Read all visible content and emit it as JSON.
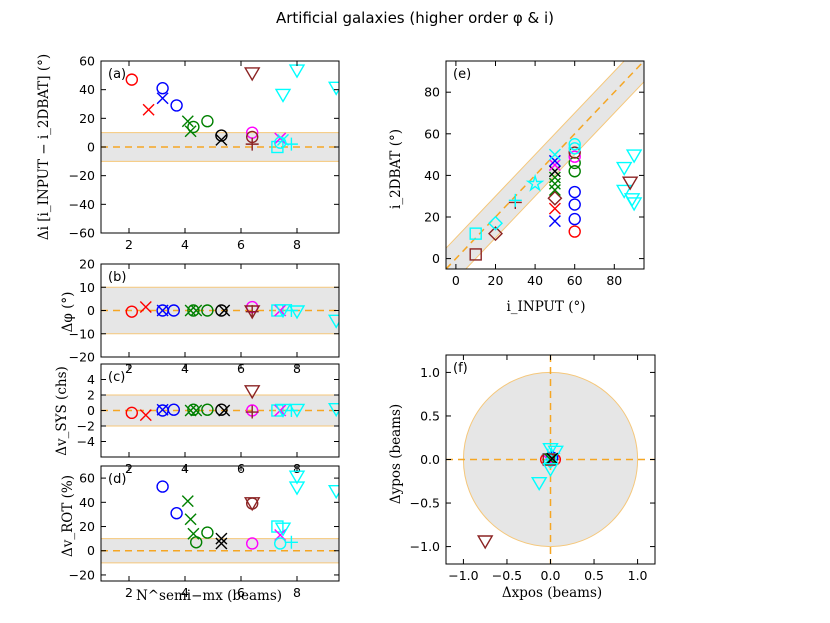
{
  "title": "Artificial galaxies (higher order φ & i)",
  "colors": {
    "band_fill": "#e6e6e6",
    "band_edge": "#f5c77a",
    "dash": "#f5a623",
    "frame": "#000000"
  },
  "chart_data": [
    {
      "id": "a",
      "panel_label": "(a)",
      "type": "scatter",
      "xlabel": "",
      "ylabel": "Δi [i_INPUT − i_2DBAT] (°)",
      "xlim": [
        1,
        9.5
      ],
      "ylim": [
        -60,
        60
      ],
      "xticks": [
        2,
        4,
        6,
        8
      ],
      "xtick_labels": [
        "2",
        "4",
        "6",
        "8"
      ],
      "yticks": [
        -60,
        -40,
        -20,
        0,
        20,
        40,
        60
      ],
      "ytick_labels": [
        "−60",
        "−40",
        "−20",
        "0",
        "20",
        "40",
        "60"
      ],
      "band": [
        -10,
        10
      ],
      "hline": 0,
      "points": [
        {
          "x": 2.1,
          "y": 47,
          "m": "o",
          "c": "#ff0000"
        },
        {
          "x": 2.7,
          "y": 26,
          "m": "x",
          "c": "#ff0000"
        },
        {
          "x": 3.2,
          "y": 41,
          "m": "o",
          "c": "#0000ff"
        },
        {
          "x": 3.2,
          "y": 34,
          "m": "x",
          "c": "#0000ff"
        },
        {
          "x": 3.7,
          "y": 29,
          "m": "o",
          "c": "#0000ff"
        },
        {
          "x": 4.1,
          "y": 18,
          "m": "x",
          "c": "#008000"
        },
        {
          "x": 4.3,
          "y": 14,
          "m": "o",
          "c": "#008000"
        },
        {
          "x": 4.2,
          "y": 11,
          "m": "x",
          "c": "#008000"
        },
        {
          "x": 4.8,
          "y": 18,
          "m": "o",
          "c": "#008000"
        },
        {
          "x": 5.3,
          "y": 8,
          "m": "o",
          "c": "#000000"
        },
        {
          "x": 5.3,
          "y": 5,
          "m": "x",
          "c": "#000000"
        },
        {
          "x": 6.4,
          "y": 52,
          "m": "v",
          "c": "#8b2323"
        },
        {
          "x": 6.4,
          "y": 10,
          "m": "o",
          "c": "#ff00ff"
        },
        {
          "x": 6.4,
          "y": 7,
          "m": "o",
          "c": "#8b2323"
        },
        {
          "x": 6.4,
          "y": 2,
          "m": "+",
          "c": "#8b2323"
        },
        {
          "x": 7.3,
          "y": 0,
          "m": "s",
          "c": "#00ffff"
        },
        {
          "x": 7.4,
          "y": 6,
          "m": "x",
          "c": "#ff00ff"
        },
        {
          "x": 7.4,
          "y": 3,
          "m": "o",
          "c": "#00ffff"
        },
        {
          "x": 7.5,
          "y": 37,
          "m": "v",
          "c": "#00ffff"
        },
        {
          "x": 7.5,
          "y": 5,
          "m": "x",
          "c": "#00ffff"
        },
        {
          "x": 7.8,
          "y": 2,
          "m": "+",
          "c": "#00ffff"
        },
        {
          "x": 8.0,
          "y": 54,
          "m": "v",
          "c": "#00ffff"
        },
        {
          "x": 9.4,
          "y": 42,
          "m": "v",
          "c": "#00ffff"
        }
      ]
    },
    {
      "id": "b",
      "panel_label": "(b)",
      "type": "scatter",
      "xlabel": "",
      "ylabel": "Δφ (°)",
      "xlim": [
        1,
        9.5
      ],
      "ylim": [
        -20,
        20
      ],
      "xticks": [
        2,
        4,
        6,
        8
      ],
      "xtick_labels": [
        "2",
        "4",
        "6",
        "8"
      ],
      "yticks": [
        -20,
        -10,
        0,
        10,
        20
      ],
      "ytick_labels": [
        "−20",
        "−10",
        "0",
        "10",
        "20"
      ],
      "band": [
        -10,
        10
      ],
      "hline": 0,
      "points": [
        {
          "x": 2.1,
          "y": -0.5,
          "m": "o",
          "c": "#ff0000"
        },
        {
          "x": 2.6,
          "y": 1.5,
          "m": "x",
          "c": "#ff0000"
        },
        {
          "x": 3.2,
          "y": 0,
          "m": "o",
          "c": "#0000ff"
        },
        {
          "x": 3.2,
          "y": 0,
          "m": "x",
          "c": "#0000ff"
        },
        {
          "x": 3.6,
          "y": 0,
          "m": "o",
          "c": "#0000ff"
        },
        {
          "x": 4.2,
          "y": 0,
          "m": "x",
          "c": "#008000"
        },
        {
          "x": 4.3,
          "y": 0,
          "m": "o",
          "c": "#008000"
        },
        {
          "x": 4.4,
          "y": 0,
          "m": "x",
          "c": "#008000"
        },
        {
          "x": 4.8,
          "y": 0,
          "m": "o",
          "c": "#008000"
        },
        {
          "x": 5.3,
          "y": 0,
          "m": "o",
          "c": "#000000"
        },
        {
          "x": 5.4,
          "y": 0,
          "m": "x",
          "c": "#000000"
        },
        {
          "x": 6.4,
          "y": 1.5,
          "m": "o",
          "c": "#ff00ff"
        },
        {
          "x": 6.4,
          "y": 0,
          "m": "v",
          "c": "#8b2323"
        },
        {
          "x": 6.4,
          "y": -0.5,
          "m": "+",
          "c": "#8b2323"
        },
        {
          "x": 7.3,
          "y": 0,
          "m": "s",
          "c": "#00ffff"
        },
        {
          "x": 7.4,
          "y": 0,
          "m": "x",
          "c": "#ff00ff"
        },
        {
          "x": 7.5,
          "y": 0.5,
          "m": "v",
          "c": "#00ffff"
        },
        {
          "x": 7.8,
          "y": 0,
          "m": "+",
          "c": "#00ffff"
        },
        {
          "x": 8.0,
          "y": 0,
          "m": "v",
          "c": "#00ffff"
        },
        {
          "x": 9.4,
          "y": -4,
          "m": "v",
          "c": "#00ffff"
        }
      ]
    },
    {
      "id": "c",
      "panel_label": "(c)",
      "type": "scatter",
      "xlabel": "",
      "ylabel": "Δv_SYS (chs)",
      "xlim": [
        1,
        9.5
      ],
      "ylim": [
        -6,
        6
      ],
      "xticks": [
        2,
        4,
        6,
        8
      ],
      "xtick_labels": [
        "2",
        "4",
        "6",
        "8"
      ],
      "yticks": [
        -4,
        -2,
        0,
        2,
        4
      ],
      "ytick_labels": [
        "−4",
        "−2",
        "0",
        "2",
        "4"
      ],
      "band": [
        -2,
        2
      ],
      "hline": 0,
      "points": [
        {
          "x": 2.1,
          "y": -0.3,
          "m": "o",
          "c": "#ff0000"
        },
        {
          "x": 2.6,
          "y": -0.6,
          "m": "x",
          "c": "#ff0000"
        },
        {
          "x": 3.2,
          "y": 0,
          "m": "o",
          "c": "#0000ff"
        },
        {
          "x": 3.2,
          "y": 0.1,
          "m": "x",
          "c": "#0000ff"
        },
        {
          "x": 3.6,
          "y": 0.1,
          "m": "o",
          "c": "#0000ff"
        },
        {
          "x": 4.2,
          "y": 0,
          "m": "x",
          "c": "#008000"
        },
        {
          "x": 4.3,
          "y": 0.1,
          "m": "o",
          "c": "#008000"
        },
        {
          "x": 4.4,
          "y": 0,
          "m": "x",
          "c": "#008000"
        },
        {
          "x": 4.8,
          "y": 0.1,
          "m": "o",
          "c": "#008000"
        },
        {
          "x": 5.3,
          "y": 0.1,
          "m": "o",
          "c": "#000000"
        },
        {
          "x": 5.4,
          "y": 0,
          "m": "x",
          "c": "#000000"
        },
        {
          "x": 6.4,
          "y": 2.6,
          "m": "v",
          "c": "#8b2323"
        },
        {
          "x": 6.4,
          "y": 0,
          "m": "o",
          "c": "#ff00ff"
        },
        {
          "x": 6.4,
          "y": -0.2,
          "m": "+",
          "c": "#8b2323"
        },
        {
          "x": 7.3,
          "y": 0,
          "m": "s",
          "c": "#00ffff"
        },
        {
          "x": 7.4,
          "y": 0,
          "m": "x",
          "c": "#ff00ff"
        },
        {
          "x": 7.5,
          "y": 0.2,
          "m": "v",
          "c": "#00ffff"
        },
        {
          "x": 7.8,
          "y": 0,
          "m": "+",
          "c": "#00ffff"
        },
        {
          "x": 8.0,
          "y": 0.2,
          "m": "v",
          "c": "#00ffff"
        },
        {
          "x": 9.4,
          "y": 0.3,
          "m": "v",
          "c": "#00ffff"
        }
      ]
    },
    {
      "id": "d",
      "panel_label": "(d)",
      "type": "scatter",
      "xlabel": "N^semi−mx (beams)",
      "ylabel": "Δv_ROT (%)",
      "xlim": [
        1,
        9.5
      ],
      "ylim": [
        -25,
        70
      ],
      "xticks": [
        2,
        4,
        6,
        8
      ],
      "xtick_labels": [
        "2",
        "4",
        "6",
        "8"
      ],
      "yticks": [
        -20,
        0,
        20,
        40,
        60
      ],
      "ytick_labels": [
        "−20",
        "0",
        "20",
        "40",
        "60"
      ],
      "band": [
        -10,
        10
      ],
      "hline": 0,
      "points": [
        {
          "x": 3.2,
          "y": 53,
          "m": "o",
          "c": "#0000ff"
        },
        {
          "x": 3.7,
          "y": 31,
          "m": "o",
          "c": "#0000ff"
        },
        {
          "x": 4.1,
          "y": 41,
          "m": "x",
          "c": "#008000"
        },
        {
          "x": 4.2,
          "y": 26,
          "m": "x",
          "c": "#008000"
        },
        {
          "x": 4.3,
          "y": 14,
          "m": "x",
          "c": "#008000"
        },
        {
          "x": 4.4,
          "y": 7,
          "m": "o",
          "c": "#008000"
        },
        {
          "x": 4.8,
          "y": 15,
          "m": "o",
          "c": "#008000"
        },
        {
          "x": 5.3,
          "y": 10,
          "m": "x",
          "c": "#000000"
        },
        {
          "x": 5.3,
          "y": 6,
          "m": "x",
          "c": "#000000"
        },
        {
          "x": 6.4,
          "y": 40,
          "m": "v",
          "c": "#8b2323"
        },
        {
          "x": 6.4,
          "y": 39,
          "m": "o",
          "c": "#8b2323"
        },
        {
          "x": 6.4,
          "y": 6,
          "m": "o",
          "c": "#ff00ff"
        },
        {
          "x": 7.3,
          "y": 20,
          "m": "s",
          "c": "#00ffff"
        },
        {
          "x": 7.4,
          "y": 13,
          "m": "x",
          "c": "#ff00ff"
        },
        {
          "x": 7.4,
          "y": 6,
          "m": "o",
          "c": "#00ffff"
        },
        {
          "x": 7.5,
          "y": 19,
          "m": "v",
          "c": "#00ffff"
        },
        {
          "x": 7.8,
          "y": 7,
          "m": "+",
          "c": "#00ffff"
        },
        {
          "x": 8.0,
          "y": 62,
          "m": "v",
          "c": "#00ffff"
        },
        {
          "x": 8.0,
          "y": 53,
          "m": "v",
          "c": "#00ffff"
        },
        {
          "x": 9.4,
          "y": 50,
          "m": "v",
          "c": "#00ffff"
        }
      ]
    },
    {
      "id": "e",
      "panel_label": "(e)",
      "type": "scatter",
      "xlabel": "i_INPUT (°)",
      "ylabel": "i_2DBAT (°)",
      "xlim": [
        -5,
        95
      ],
      "ylim": [
        -5,
        95
      ],
      "xticks": [
        0,
        20,
        40,
        60,
        80
      ],
      "xtick_labels": [
        "0",
        "20",
        "40",
        "60",
        "80"
      ],
      "yticks": [
        0,
        20,
        40,
        60,
        80
      ],
      "ytick_labels": [
        "0",
        "20",
        "40",
        "60",
        "80"
      ],
      "band_diag": 10,
      "diag": true,
      "points": [
        {
          "x": 10,
          "y": 2,
          "m": "s",
          "c": "#8b2323"
        },
        {
          "x": 10,
          "y": 12,
          "m": "s",
          "c": "#00ffff"
        },
        {
          "x": 20,
          "y": 12,
          "m": "D",
          "c": "#8b2323"
        },
        {
          "x": 20,
          "y": 17,
          "m": "D",
          "c": "#00ffff"
        },
        {
          "x": 30,
          "y": 27,
          "m": "+",
          "c": "#8b2323"
        },
        {
          "x": 30,
          "y": 28,
          "m": "+",
          "c": "#00ffff"
        },
        {
          "x": 40,
          "y": 36,
          "m": "*",
          "c": "#00ffff"
        },
        {
          "x": 50,
          "y": 18,
          "m": "x",
          "c": "#0000ff"
        },
        {
          "x": 50,
          "y": 24,
          "m": "x",
          "c": "#ff0000"
        },
        {
          "x": 50,
          "y": 29,
          "m": "D",
          "c": "#8b2323"
        },
        {
          "x": 50,
          "y": 33,
          "m": "x",
          "c": "#008000"
        },
        {
          "x": 50,
          "y": 36,
          "m": "x",
          "c": "#008000"
        },
        {
          "x": 50,
          "y": 39,
          "m": "x",
          "c": "#008000"
        },
        {
          "x": 50,
          "y": 42,
          "m": "x",
          "c": "#000000"
        },
        {
          "x": 50,
          "y": 45,
          "m": "x",
          "c": "#ff00ff"
        },
        {
          "x": 50,
          "y": 47,
          "m": "x",
          "c": "#0000ff"
        },
        {
          "x": 50,
          "y": 50,
          "m": "x",
          "c": "#00ffff"
        },
        {
          "x": 60,
          "y": 13,
          "m": "o",
          "c": "#ff0000"
        },
        {
          "x": 60,
          "y": 19,
          "m": "o",
          "c": "#0000ff"
        },
        {
          "x": 60,
          "y": 26,
          "m": "o",
          "c": "#0000ff"
        },
        {
          "x": 60,
          "y": 32,
          "m": "o",
          "c": "#0000ff"
        },
        {
          "x": 60,
          "y": 42,
          "m": "o",
          "c": "#008000"
        },
        {
          "x": 60,
          "y": 46,
          "m": "o",
          "c": "#008000"
        },
        {
          "x": 60,
          "y": 49,
          "m": "o",
          "c": "#ff00ff"
        },
        {
          "x": 60,
          "y": 51,
          "m": "o",
          "c": "#8b2323"
        },
        {
          "x": 60,
          "y": 53,
          "m": "o",
          "c": "#00ffff"
        },
        {
          "x": 60,
          "y": 55,
          "m": "o",
          "c": "#00ffff"
        },
        {
          "x": 85,
          "y": 44,
          "m": "v",
          "c": "#00ffff"
        },
        {
          "x": 85,
          "y": 33,
          "m": "v",
          "c": "#00ffff"
        },
        {
          "x": 88,
          "y": 37,
          "m": "v",
          "c": "#8b2323"
        },
        {
          "x": 89,
          "y": 29,
          "m": "v",
          "c": "#00ffff"
        },
        {
          "x": 90,
          "y": 27,
          "m": "v",
          "c": "#00ffff"
        },
        {
          "x": 90,
          "y": 50,
          "m": "v",
          "c": "#00ffff"
        }
      ]
    },
    {
      "id": "f",
      "panel_label": "(f)",
      "type": "scatter",
      "xlabel": "Δxpos (beams)",
      "ylabel": "Δypos (beams)",
      "xlim": [
        -1.2,
        1.2
      ],
      "ylim": [
        -1.2,
        1.2
      ],
      "xticks": [
        -1,
        -0.5,
        0,
        0.5,
        1
      ],
      "xtick_labels": [
        "−1.0",
        "−0.5",
        "0.0",
        "0.5",
        "1.0"
      ],
      "yticks": [
        -1,
        -0.5,
        0,
        0.5,
        1
      ],
      "ytick_labels": [
        "−1.0",
        "−0.5",
        "0.0",
        "0.5",
        "1.0"
      ],
      "circle_r": 1,
      "cross": true,
      "points": [
        {
          "x": 0.0,
          "y": 0.13,
          "m": "v",
          "c": "#00ffff"
        },
        {
          "x": 0.06,
          "y": 0.1,
          "m": "v",
          "c": "#00ffff"
        },
        {
          "x": -0.03,
          "y": 0.05,
          "m": "+",
          "c": "#00ffff"
        },
        {
          "x": -0.05,
          "y": 0.0,
          "m": "o",
          "c": "#ff0000"
        },
        {
          "x": 0.05,
          "y": 0.0,
          "m": "o",
          "c": "#ff0000"
        },
        {
          "x": 0.02,
          "y": 0.02,
          "m": "o",
          "c": "#0000ff"
        },
        {
          "x": -0.02,
          "y": -0.01,
          "m": "x",
          "c": "#ff00ff"
        },
        {
          "x": 0.0,
          "y": -0.02,
          "m": "D",
          "c": "#00ffff"
        },
        {
          "x": 0.01,
          "y": 0.04,
          "m": "*",
          "c": "#00ffff"
        },
        {
          "x": -0.02,
          "y": 0.0,
          "m": "s",
          "c": "#8b2323"
        },
        {
          "x": 0.0,
          "y": 0.0,
          "m": "x",
          "c": "#008000"
        },
        {
          "x": 0.02,
          "y": 0.01,
          "m": "x",
          "c": "#000000"
        },
        {
          "x": 0.0,
          "y": -0.1,
          "m": "v",
          "c": "#00ffff"
        },
        {
          "x": -0.13,
          "y": -0.26,
          "m": "v",
          "c": "#00ffff"
        },
        {
          "x": -0.75,
          "y": -0.93,
          "m": "v",
          "c": "#8b2323"
        }
      ]
    }
  ]
}
